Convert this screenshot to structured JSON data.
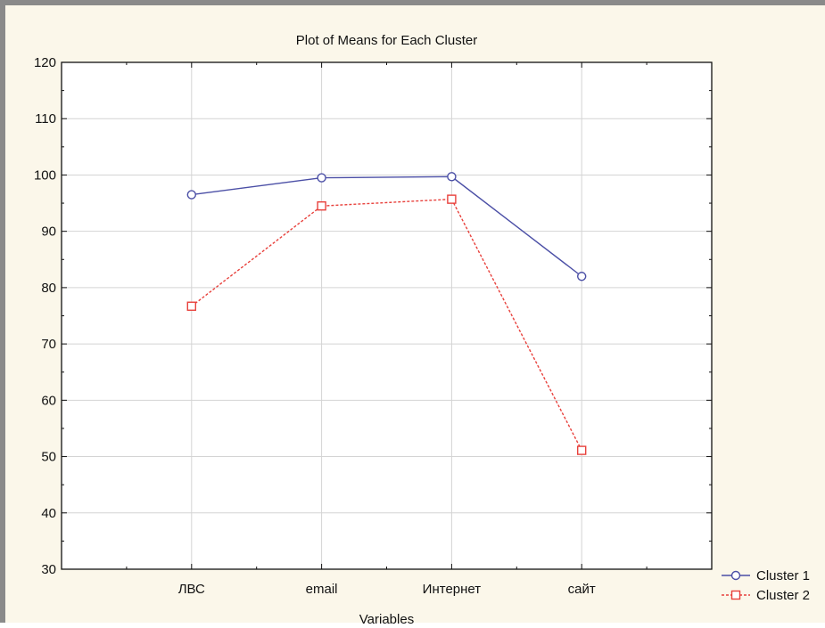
{
  "chart_data": {
    "type": "line",
    "title": "Plot of Means for Each Cluster",
    "xlabel": "Variables",
    "ylabel": "",
    "categories": [
      "ЛВС",
      "email",
      "Интернет",
      "сайт"
    ],
    "ylim": [
      30,
      120
    ],
    "yticks": [
      30,
      40,
      50,
      60,
      70,
      80,
      90,
      100,
      110,
      120
    ],
    "grid": true,
    "legend_position": "bottom-right",
    "series": [
      {
        "name": "Cluster 1",
        "values": [
          96.5,
          99.5,
          99.7,
          82.0
        ],
        "color": "#4b4fa6",
        "marker": "circle",
        "dash": "solid"
      },
      {
        "name": "Cluster 2",
        "values": [
          76.7,
          94.5,
          95.7,
          51.1
        ],
        "color": "#e8413c",
        "marker": "square",
        "dash": "dashed"
      }
    ]
  },
  "colors": {
    "frame_background": "#fbf7ea",
    "plot_background": "#ffffff",
    "grid": "#d4d4d4"
  }
}
